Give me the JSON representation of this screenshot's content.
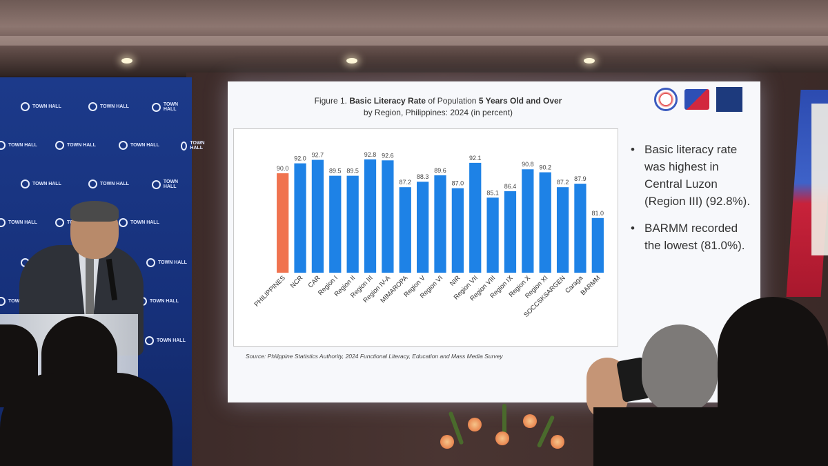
{
  "backdrop": {
    "logo_text": "TOWN HALL"
  },
  "slide": {
    "title_line1_a": "Figure 1.",
    "title_line1_b": "Basic Literacy Rate",
    "title_line1_c": "of Population",
    "title_line1_d": "5 Years Old and Over",
    "title_line2": "by Region, Philippines: 2024 (in percent)",
    "source": "Source: Philippine Statistics Authority, 2024 Functional Literacy, Education and Mass Media Survey",
    "bullets": [
      "Basic literacy rate was highest in Central Luzon (Region III) (92.8%).",
      "BARMM recorded the lowest (81.0%)."
    ]
  },
  "chart_data": {
    "type": "bar",
    "categories": [
      "PHILIPPINES",
      "NCR",
      "CAR",
      "Region I",
      "Region II",
      "Region III",
      "Region IV-A",
      "MIMAROPA",
      "Region V",
      "Region VI",
      "NIR",
      "Region VII",
      "Region VIII",
      "Region IX",
      "Region X",
      "Region XI",
      "SOCCSKSARGEN",
      "Caraga",
      "BARMM"
    ],
    "values": [
      90.0,
      92.0,
      92.7,
      89.5,
      89.5,
      92.8,
      92.6,
      87.2,
      88.3,
      89.6,
      87.0,
      92.1,
      85.1,
      86.4,
      90.8,
      90.2,
      87.2,
      87.9,
      81.0
    ],
    "value_labels": [
      "90.0",
      "92.0",
      "92.7",
      "89.5",
      "89.5",
      "92.8",
      "92.6",
      "87.2",
      "88.3",
      "89.6",
      "87.0",
      "92.1",
      "85.1",
      "86.4",
      "90.8",
      "90.2",
      "87.2",
      "87.9",
      "81.0"
    ],
    "ylim": [
      0,
      100
    ],
    "colors": {
      "highlight": "#f0734f",
      "bar": "#1e82e6"
    },
    "highlight_index": 0,
    "grid": false
  }
}
